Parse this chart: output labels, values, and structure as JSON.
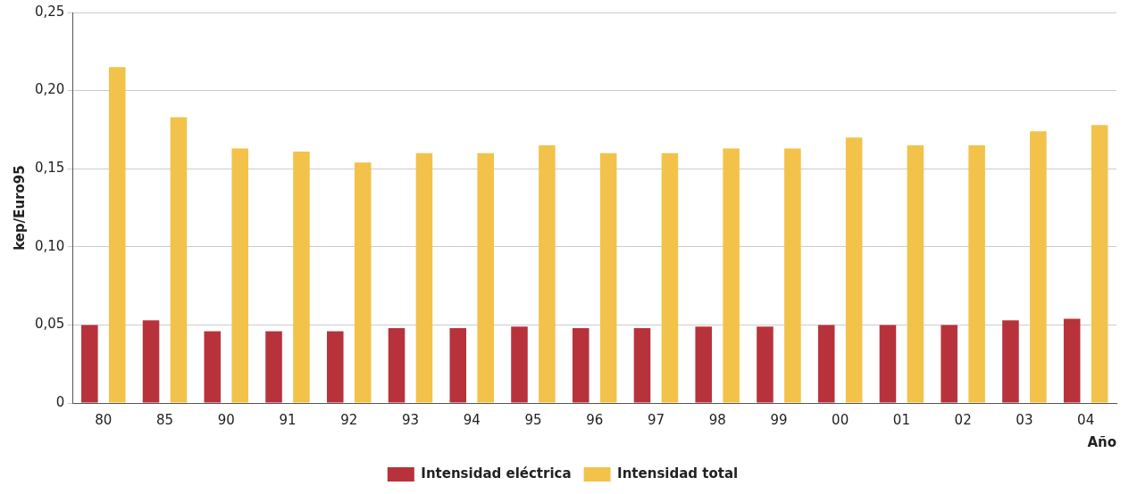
{
  "chart_data": {
    "type": "bar",
    "xlabel": "Año",
    "ylabel": "kep/Euro95",
    "categories": [
      "80",
      "85",
      "90",
      "91",
      "92",
      "93",
      "94",
      "95",
      "96",
      "97",
      "98",
      "99",
      "00",
      "01",
      "02",
      "03",
      "04"
    ],
    "series": [
      {
        "name": "Intensidad eléctrica",
        "color": "#b8323c",
        "values": [
          0.05,
          0.053,
          0.046,
          0.046,
          0.046,
          0.048,
          0.048,
          0.049,
          0.048,
          0.048,
          0.049,
          0.049,
          0.05,
          0.05,
          0.05,
          0.053,
          0.054
        ]
      },
      {
        "name": "Intensidad total",
        "color": "#f2c24a",
        "values": [
          0.215,
          0.183,
          0.163,
          0.161,
          0.154,
          0.16,
          0.16,
          0.165,
          0.16,
          0.16,
          0.163,
          0.163,
          0.17,
          0.165,
          0.165,
          0.174,
          0.178
        ]
      }
    ],
    "ylim": [
      0,
      0.25
    ],
    "yticks": [
      0,
      {
        "value": 0.05,
        "label": "0,05"
      },
      {
        "value": 0.1,
        "label": "0,10"
      },
      {
        "value": 0.15,
        "label": "0,15"
      },
      {
        "value": 0.2,
        "label": "0,20"
      },
      {
        "value": 0.25,
        "label": "0,25"
      }
    ],
    "grid": "y",
    "legend": "bottom"
  }
}
